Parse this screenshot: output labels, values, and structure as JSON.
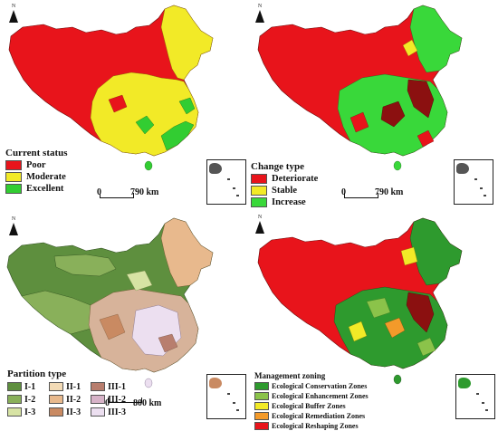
{
  "colors": {
    "poor": "#e8141b",
    "moderate": "#f2ea27",
    "excellent": "#32cd32",
    "deteriorate": "#e8141b",
    "stable": "#f2ea27",
    "increase": "#39d83a",
    "darkred": "#8b1010",
    "green": "#38a832",
    "I_1": "#5e8f3e",
    "I_2": "#89b05a",
    "I_3": "#d7e3a4",
    "II_1": "#f3dbb6",
    "II_2": "#e8b98d",
    "II_3": "#c98a62",
    "III_1": "#b87e6e",
    "III_2": "#d7b3c8",
    "III_3": "#ecdff0",
    "conservation": "#2e9a2e",
    "enhancement": "#8bc34a",
    "buffer": "#f2ea27",
    "remediation": "#f39a2a",
    "reshaping": "#e8141b"
  },
  "panel1": {
    "legend_title": "Current status",
    "items": [
      {
        "label": "Poor",
        "color": "#e8141b"
      },
      {
        "label": "Moderate",
        "color": "#f2ea27"
      },
      {
        "label": "Excellent",
        "color": "#32cd32"
      }
    ],
    "scale_zero": "0",
    "scale_value": "790  km",
    "north": "N"
  },
  "panel2": {
    "legend_title": "Change type",
    "items": [
      {
        "label": "Deteriorate",
        "color": "#e8141b"
      },
      {
        "label": "Stable",
        "color": "#f2ea27"
      },
      {
        "label": "Increase",
        "color": "#39d83a"
      }
    ],
    "scale_zero": "0",
    "scale_value": "790  km",
    "north": "N"
  },
  "panel3": {
    "legend_title": "Partition type",
    "items": [
      {
        "label": "I-1",
        "color": "#5e8f3e"
      },
      {
        "label": "II-1",
        "color": "#f3dbb6"
      },
      {
        "label": "III-1",
        "color": "#b87e6e"
      },
      {
        "label": "I-2",
        "color": "#89b05a"
      },
      {
        "label": "II-2",
        "color": "#e8b98d"
      },
      {
        "label": "III-2",
        "color": "#d7b3c8"
      },
      {
        "label": "I-3",
        "color": "#d7e3a4"
      },
      {
        "label": "II-3",
        "color": "#c98a62"
      },
      {
        "label": "III-3",
        "color": "#ecdff0"
      }
    ],
    "scale_zero": "0",
    "scale_value": "800  km",
    "north": "N"
  },
  "panel4": {
    "legend_title": "Management zoning",
    "items": [
      {
        "label": "Ecological Conservation Zones",
        "color": "#2e9a2e"
      },
      {
        "label": "Ecological Enhancement Zones",
        "color": "#8bc34a"
      },
      {
        "label": "Ecological Buffer Zones",
        "color": "#f2ea27"
      },
      {
        "label": "Ecological Remediation Zones",
        "color": "#f39a2a"
      },
      {
        "label": "Ecological Reshaping Zones",
        "color": "#e8141b"
      }
    ],
    "north": "N"
  }
}
